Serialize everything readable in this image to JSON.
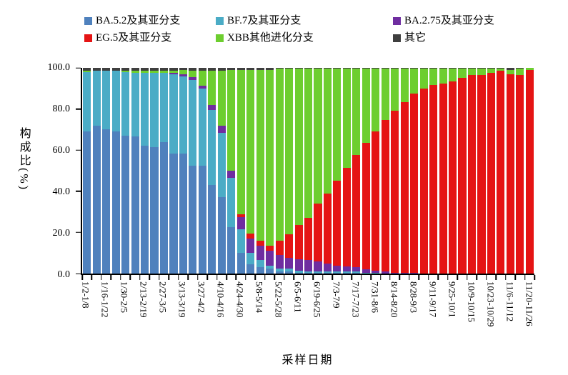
{
  "chart_data": {
    "type": "bar",
    "stacked": true,
    "orientation": "vertical",
    "title": "",
    "xlabel": "采样日期",
    "ylabel": "构成比(%)",
    "ylim": [
      0,
      100
    ],
    "grid": false,
    "legend_position": "top",
    "y_ticks": [
      "0.0",
      "20.0",
      "40.0",
      "60.0",
      "80.0",
      "100.0"
    ],
    "categories": [
      "1/2-1/8",
      "",
      "1/16-1/22",
      "",
      "1/30-2/5",
      "",
      "2/13-2/19",
      "",
      "2/27-3/5",
      "",
      "3/13-3/19",
      "",
      "3/27-4/2",
      "",
      "4/10-4/16",
      "",
      "4/24-4/30",
      "",
      "5/8-5/14",
      "",
      "5/22-5/28",
      "",
      "6/5-6/11",
      "",
      "6/19-6/25",
      "",
      "7/3-7/9",
      "",
      "7/17-7/23",
      "",
      "7/31-8/6",
      "",
      "8/14-8/20",
      "",
      "8/28-9/3",
      "",
      "9/11-9/17",
      "",
      "9/25-10/1",
      "",
      "10/9-10/15",
      "",
      "10/23-10/29",
      "",
      "11/6-11/12",
      "",
      "11/20-11/26"
    ],
    "series": [
      {
        "name": "BA.5.2及其亚分支",
        "color": "#4f81bd",
        "values": [
          69,
          72,
          70,
          69,
          67,
          66.5,
          62,
          61.5,
          64,
          58.5,
          58.5,
          52.5,
          52.5,
          43,
          37,
          22.5,
          10,
          4.5,
          3,
          2.5,
          1,
          1,
          0.5,
          0.5,
          0.5,
          0.5,
          0.5,
          0.5,
          0.5,
          0,
          0,
          0,
          0,
          0,
          0,
          0,
          0,
          0,
          0,
          0,
          0,
          0,
          0,
          0,
          0,
          0,
          0
        ]
      },
      {
        "name": "BF.7及其亚分支",
        "color": "#4bacc6",
        "values": [
          29,
          26.5,
          28.5,
          29.5,
          31,
          31,
          35.5,
          36,
          33.5,
          38.5,
          37.5,
          41.5,
          37.5,
          36.5,
          31.5,
          24,
          11.5,
          5.5,
          3.5,
          1.5,
          1.5,
          1.5,
          1,
          0.5,
          0.5,
          0.5,
          0.5,
          0.5,
          0.5,
          0.5,
          0.5,
          0,
          0,
          0,
          0,
          0,
          0,
          0,
          0,
          0,
          0,
          0,
          0,
          0,
          0,
          0,
          0
        ]
      },
      {
        "name": "BA.2.75及其亚分支",
        "color": "#6f2da0",
        "values": [
          0,
          0,
          0,
          0,
          0,
          0,
          0,
          0,
          0,
          0.5,
          1,
          1.5,
          1.5,
          2.5,
          3.5,
          3.5,
          6,
          7,
          7,
          7,
          6.5,
          5,
          5.5,
          5.5,
          5,
          4,
          3,
          2.5,
          2,
          1.5,
          1,
          1,
          0.5,
          0.5,
          0.5,
          0,
          0,
          0,
          0,
          0,
          0,
          0,
          0,
          0,
          0,
          0,
          0
        ]
      },
      {
        "name": "EG.5及其亚分支",
        "color": "#e51414",
        "values": [
          0,
          0,
          0,
          0,
          0,
          0,
          0,
          0,
          0,
          0,
          0,
          0,
          0,
          0,
          0,
          0,
          1.5,
          2.5,
          2.5,
          2.5,
          7,
          11.5,
          16.5,
          20.5,
          28,
          34,
          41,
          48,
          54.5,
          61.5,
          67.5,
          73.5,
          78.5,
          83,
          87,
          90,
          91.5,
          92.5,
          93.5,
          95,
          96.5,
          96.5,
          97.5,
          98.5,
          97,
          96.5,
          99
        ]
      },
      {
        "name": "XBB其他进化分支",
        "color": "#6dce2f",
        "values": [
          0.5,
          0,
          0,
          0,
          0.5,
          1,
          1,
          1,
          1,
          1,
          2,
          3,
          7,
          16.5,
          26.5,
          49,
          70,
          79.5,
          83,
          85.5,
          83.5,
          80.5,
          76,
          72.5,
          65.5,
          60.5,
          54.5,
          48,
          42,
          36,
          30.5,
          25,
          20.5,
          16,
          12,
          9.5,
          8,
          7,
          6,
          4.5,
          3,
          3,
          2,
          1,
          2,
          3,
          1
        ]
      },
      {
        "name": "其它",
        "color": "#3f3f3f",
        "values": [
          1.5,
          1.5,
          1.5,
          1.5,
          1.5,
          1.5,
          1.5,
          1.5,
          1.5,
          1.5,
          1,
          1.5,
          1.5,
          1.5,
          1.5,
          1,
          1,
          1,
          1,
          1,
          0.5,
          0.5,
          0.5,
          0.5,
          0.5,
          0.5,
          0.5,
          0.5,
          0.5,
          0.5,
          0.5,
          0.5,
          0.5,
          0.5,
          0.5,
          0.5,
          0.5,
          0.5,
          0.5,
          0.5,
          0.5,
          0.5,
          0.5,
          0.5,
          1,
          0.5,
          0
        ]
      }
    ]
  },
  "axis_titles": {
    "y": "构成比(%)",
    "x": "采样日期"
  }
}
